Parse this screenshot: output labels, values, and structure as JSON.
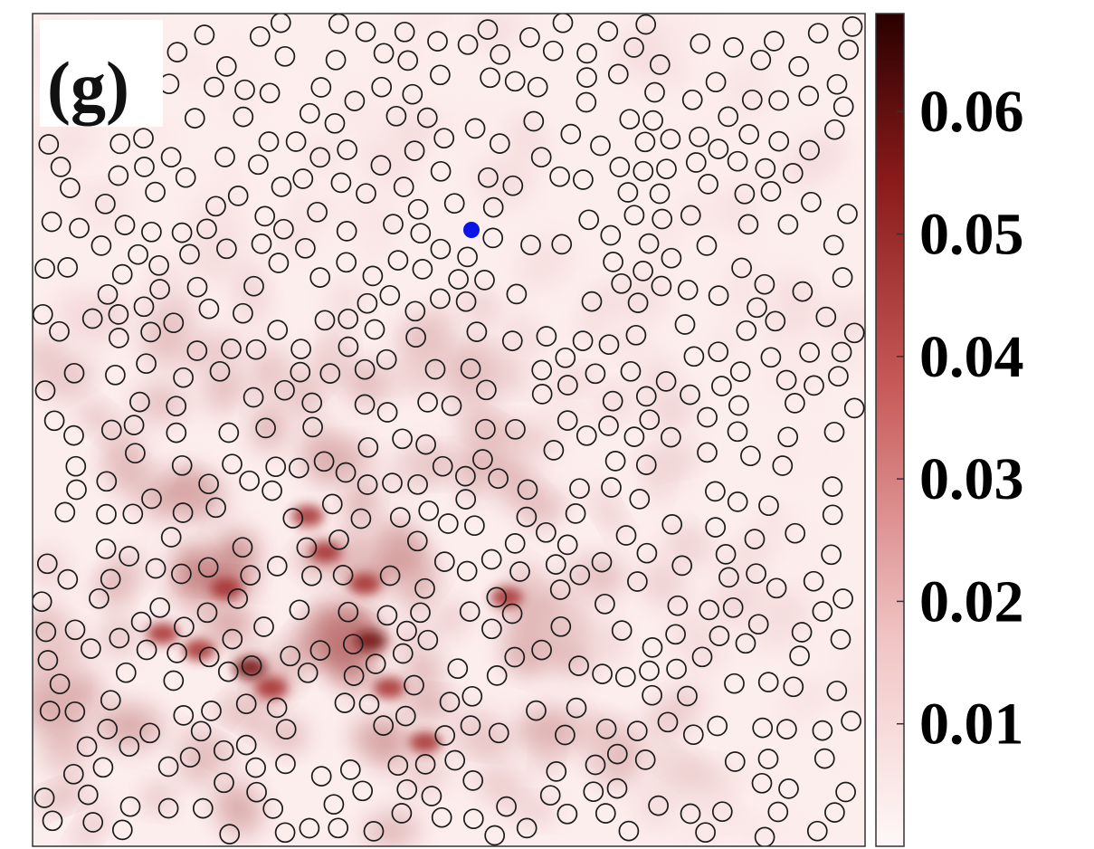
{
  "panel_label": "(g)",
  "colors": {
    "scale_low": "#fff6f6",
    "scale_mid": "#d46a6a",
    "scale_high": "#2a0000",
    "scatterer_stroke": "#1a1a1a",
    "source_fill": "#0a14e6",
    "frame": "#333333"
  },
  "chart_data": {
    "type": "heatmap",
    "title": "",
    "xlabel": "",
    "ylabel": "",
    "colorbar": {
      "range": [
        0.0,
        0.068
      ],
      "ticks": [
        0.01,
        0.02,
        0.03,
        0.04,
        0.05,
        0.06
      ],
      "tick_labels": [
        "0.01",
        "0.02",
        "0.03",
        "0.04",
        "0.05",
        "0.06"
      ],
      "colormap": "white-to-dark-red"
    },
    "intensity_hotspots": [
      {
        "region": "lower-left",
        "level": 0.065
      },
      {
        "region": "lower-center",
        "level": 0.06
      },
      {
        "region": "center-left",
        "level": 0.045
      }
    ],
    "source": {
      "marker": "filled blue dot",
      "region": "upper-center"
    },
    "scatterers": {
      "marker": "open black circles",
      "count_approx": 560
    }
  }
}
